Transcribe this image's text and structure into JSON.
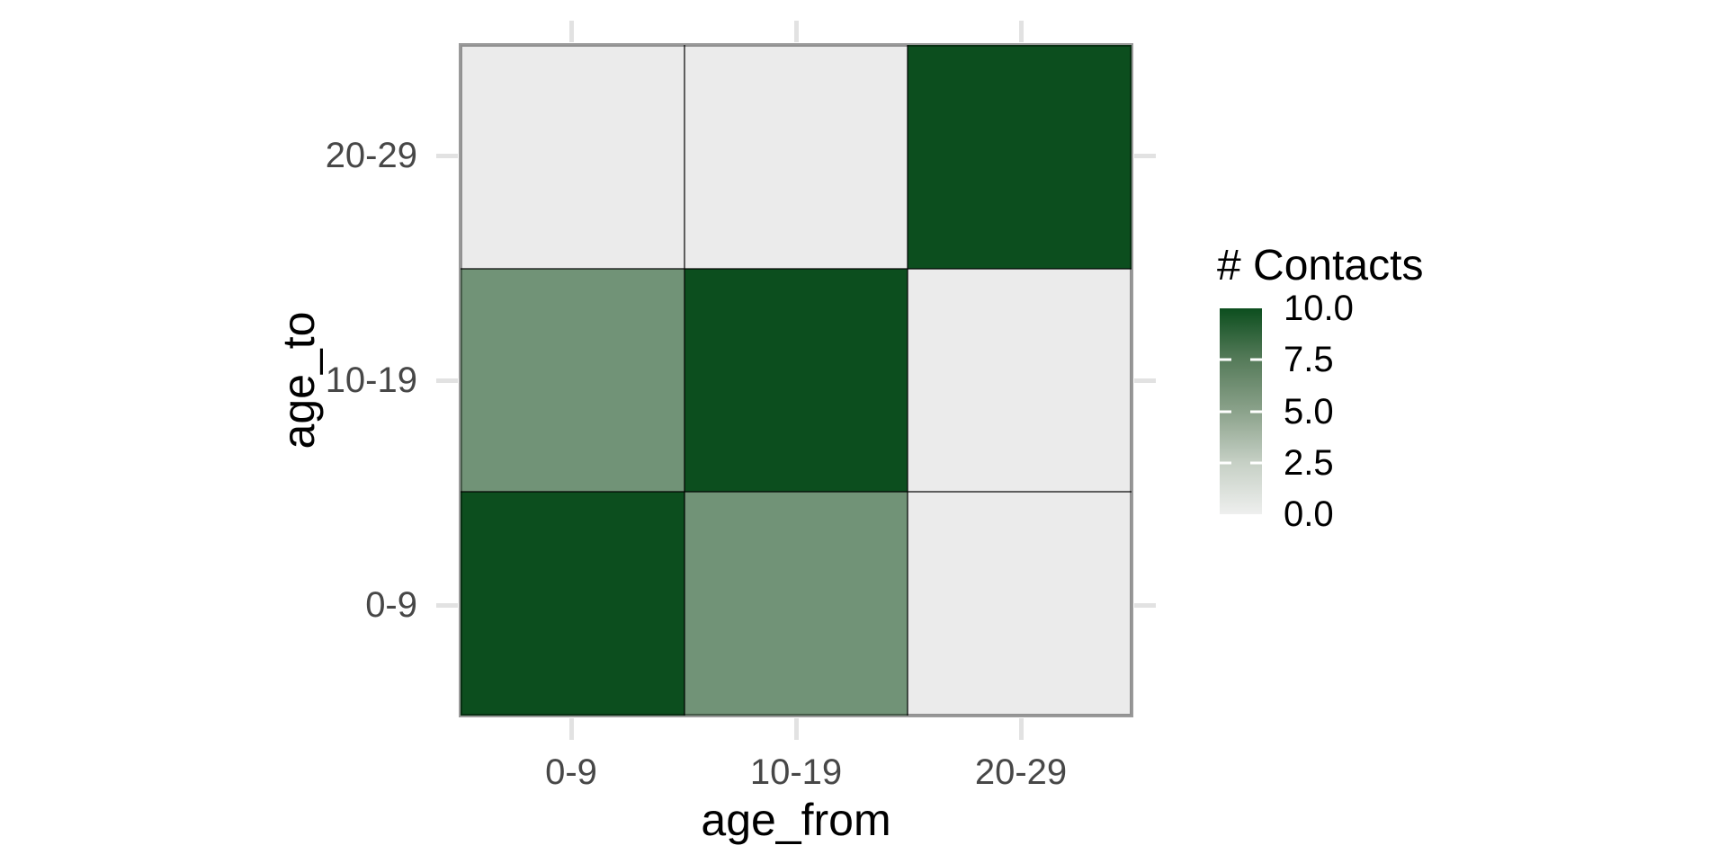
{
  "chart_data": {
    "type": "heatmap",
    "title": "",
    "x": {
      "label": "age_from",
      "categories": [
        "0-9",
        "10-19",
        "20-29"
      ]
    },
    "y": {
      "label": "age_to",
      "categories": [
        "0-9",
        "10-19",
        "20-29"
      ]
    },
    "rows_top_to_bottom": [
      {
        "age_to": "20-29",
        "values": [
          0,
          0,
          10
        ]
      },
      {
        "age_to": "10-19",
        "values": [
          5,
          10,
          0
        ]
      },
      {
        "age_to": "0-9",
        "values": [
          10,
          5,
          0
        ]
      }
    ],
    "color_scale": {
      "title": "# Contacts",
      "limits": [
        0,
        10
      ],
      "breaks": [
        10.0,
        7.5,
        5.0,
        2.5,
        0.0
      ],
      "break_labels": [
        "10.0",
        "7.5",
        "5.0",
        "2.5",
        "0.0"
      ],
      "value_colors": {
        "0": "#ebebeb",
        "5": "#719377",
        "10": "#0c4e1e"
      },
      "gradient_stops": [
        [
          "0%",
          "#0c4e1e"
        ],
        [
          "25%",
          "#567b5a"
        ],
        [
          "50%",
          "#8ba28b"
        ],
        [
          "75%",
          "#c6d0c5"
        ],
        [
          "100%",
          "#eeefee"
        ]
      ],
      "legend_position": "right"
    },
    "panel_background": "#ebebeb",
    "grid": true
  }
}
